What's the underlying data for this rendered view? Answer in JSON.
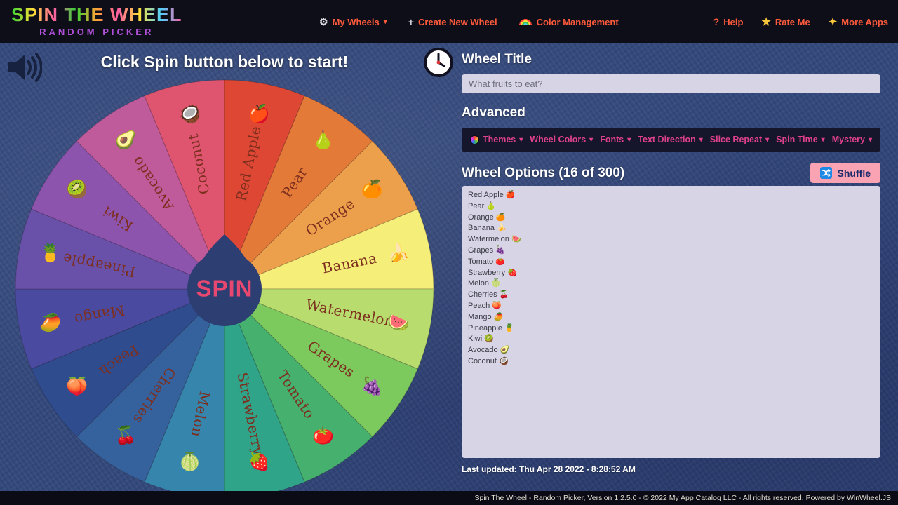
{
  "navbar": {
    "logo_title": "SPIN THE WHEEL",
    "logo_subtitle": "RANDOM PICKER",
    "menu": {
      "my_wheels": "My Wheels",
      "create_new_wheel": "Create New Wheel",
      "color_management": "Color Management"
    },
    "right_menu": {
      "help": "Help",
      "rate_me": "Rate Me",
      "more_apps": "More Apps"
    }
  },
  "icons": {
    "caret": "▾",
    "gear": "⚙",
    "plus": "+",
    "question": "?",
    "star": "★",
    "sparkle": "✦"
  },
  "wheel": {
    "instruction": "Click Spin button below to start!",
    "spin_label": "SPIN",
    "center_color": "#2d3f72",
    "label_color": "#7d2f1f",
    "slices": [
      {
        "label": "Red Apple",
        "emoji": "🍎",
        "color": "#dd4733"
      },
      {
        "label": "Pear",
        "emoji": "🍐",
        "color": "#e47a38"
      },
      {
        "label": "Orange",
        "emoji": "🍊",
        "color": "#eda04b"
      },
      {
        "label": "Banana",
        "emoji": "🍌",
        "color": "#f5ee79"
      },
      {
        "label": "Watermelon",
        "emoji": "🍉",
        "color": "#b8dc6e"
      },
      {
        "label": "Grapes",
        "emoji": "🍇",
        "color": "#7cc95e"
      },
      {
        "label": "Tomato",
        "emoji": "🍅",
        "color": "#46b06e"
      },
      {
        "label": "Strawberry",
        "emoji": "🍓",
        "color": "#30a489"
      },
      {
        "label": "Melon",
        "emoji": "🍈",
        "color": "#3585ac"
      },
      {
        "label": "Cherries",
        "emoji": "🍒",
        "color": "#35619c"
      },
      {
        "label": "Peach",
        "emoji": "🍑",
        "color": "#2f4c8e"
      },
      {
        "label": "Mango",
        "emoji": "🥭",
        "color": "#4a4aa0"
      },
      {
        "label": "Pineapple",
        "emoji": "🍍",
        "color": "#6950a8"
      },
      {
        "label": "Kiwi",
        "emoji": "🥝",
        "color": "#8d54ae"
      },
      {
        "label": "Avocado",
        "emoji": "🥑",
        "color": "#bf5a9b"
      },
      {
        "label": "Coconut",
        "emoji": "🥥",
        "color": "#df5570"
      }
    ]
  },
  "panel": {
    "title_heading": "Wheel Title",
    "title_value": "What fruits to eat?",
    "advanced_heading": "Advanced",
    "toolbar": [
      "Themes",
      "Wheel Colors",
      "Fonts",
      "Text Direction",
      "Slice Repeat",
      "Spin Time",
      "Mystery"
    ],
    "options_heading": "Wheel Options (16 of 300)",
    "shuffle_label": "Shuffle",
    "options": [
      "Red Apple 🍎",
      "Pear 🍐",
      "Orange 🍊",
      "Banana 🍌",
      "Watermelon 🍉",
      "Grapes 🍇",
      "Tomato 🍅",
      "Strawberry 🍓",
      "Melon 🍈",
      "Cherries 🍒",
      "Peach 🍑",
      "Mango 🥭",
      "Pineapple 🍍",
      "Kiwi 🥝",
      "Avocado 🥑",
      "Coconut 🥥"
    ],
    "last_updated": "Last updated: Thu Apr 28 2022 - 8:28:52 AM"
  },
  "footer": {
    "text": "Spin The Wheel - Random Picker, Version 1.2.5.0 - © 2022 My App Catalog LLC - All rights reserved. Powered by WinWheel.JS"
  }
}
